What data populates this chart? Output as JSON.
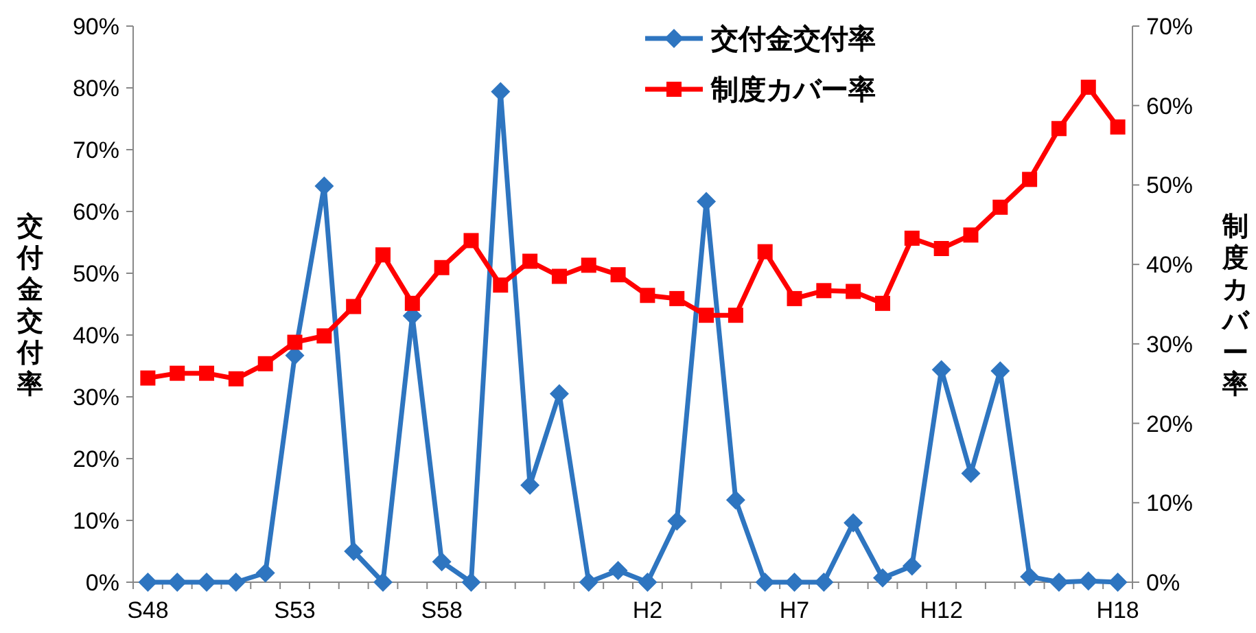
{
  "chart_data": {
    "type": "line",
    "categories": [
      "S48",
      null,
      null,
      null,
      null,
      "S53",
      null,
      null,
      null,
      null,
      "S58",
      null,
      null,
      null,
      null,
      null,
      null,
      "H2",
      null,
      null,
      null,
      null,
      "H7",
      null,
      null,
      null,
      null,
      "H12",
      null,
      null,
      null,
      null,
      null,
      "H18"
    ],
    "series": [
      {
        "name": "交付金交付率",
        "color": "#2e75c0",
        "marker": "diamond",
        "values": [
          0,
          0,
          0,
          0,
          1.5,
          36.7,
          64.1,
          5.0,
          0,
          43.1,
          3.3,
          0,
          79.4,
          15.7,
          30.5,
          0,
          1.9,
          0,
          9.9,
          61.6,
          13.3,
          0,
          0,
          0,
          9.6,
          0.7,
          2.6,
          34.4,
          17.6,
          34.2,
          0.9,
          0,
          0.2,
          0
        ]
      },
      {
        "name": "制度カバー率",
        "color": "#ff0000",
        "marker": "square",
        "axis": "y2",
        "values": [
          25.7,
          26.3,
          26.3,
          25.6,
          27.5,
          30.2,
          31.0,
          34.7,
          41.2,
          35.1,
          39.6,
          43.0,
          37.4,
          40.4,
          38.5,
          39.9,
          38.7,
          36.1,
          35.7,
          33.6,
          33.6,
          41.6,
          35.7,
          36.7,
          36.6,
          35.1,
          43.3,
          42.0,
          43.7,
          47.2,
          50.7,
          57.1,
          62.3,
          57.3
        ]
      }
    ],
    "ylabel": "交付金交付率",
    "y2label": "制度カバー率",
    "ylim": [
      0,
      90
    ],
    "yticks": [
      {
        "value": 0,
        "label": "0%"
      },
      {
        "value": 10,
        "label": "10%"
      },
      {
        "value": 20,
        "label": "20%"
      },
      {
        "value": 30,
        "label": "30%"
      },
      {
        "value": 40,
        "label": "40%"
      },
      {
        "value": 50,
        "label": "50%"
      },
      {
        "value": 60,
        "label": "60%"
      },
      {
        "value": 70,
        "label": "70%"
      },
      {
        "value": 80,
        "label": "80%"
      },
      {
        "value": 90,
        "label": "90%"
      }
    ],
    "y2lim": [
      0,
      70
    ],
    "y2ticks": [
      {
        "value": 0,
        "label": "0%"
      },
      {
        "value": 10,
        "label": "10%"
      },
      {
        "value": 20,
        "label": "20%"
      },
      {
        "value": 30,
        "label": "30%"
      },
      {
        "value": 40,
        "label": "40%"
      },
      {
        "value": 50,
        "label": "50%"
      },
      {
        "value": 60,
        "label": "60%"
      },
      {
        "value": 70,
        "label": "70%"
      }
    ],
    "legend": "top",
    "grid": false,
    "line_style": "solid"
  }
}
